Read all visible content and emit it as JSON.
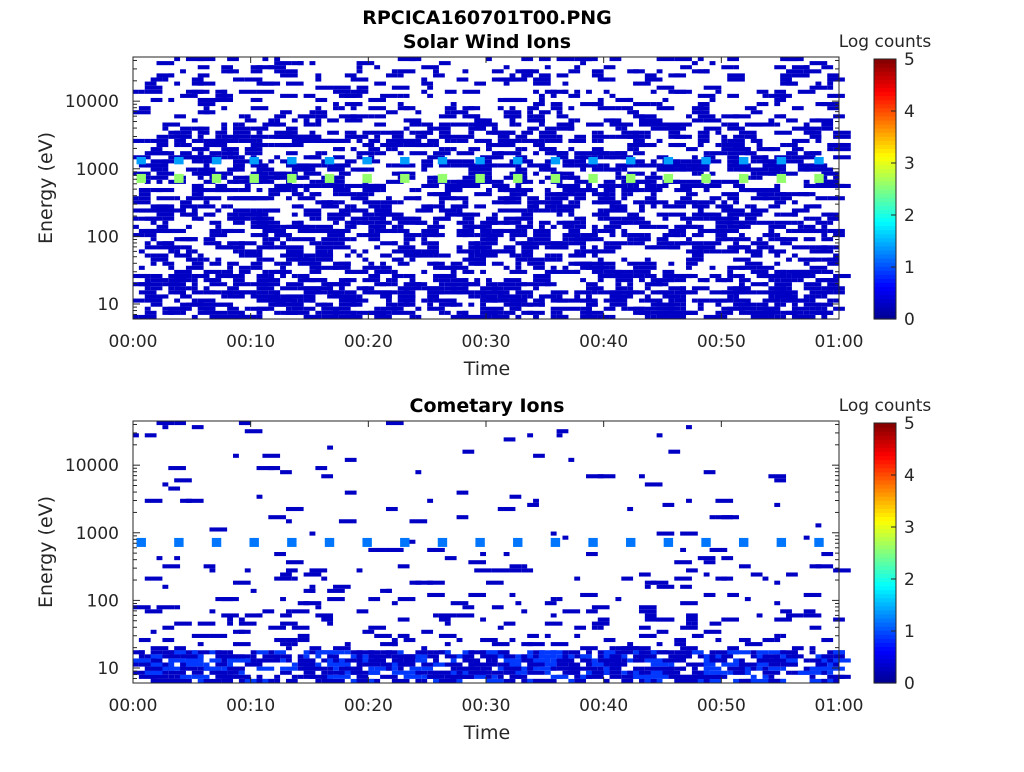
{
  "figure_title": "RPCICA160701T00.PNG",
  "colormap": [
    "#00008f",
    "#0000ff",
    "#0080ff",
    "#00ffff",
    "#80ff80",
    "#ffff00",
    "#ff8000",
    "#ff0000",
    "#800000"
  ],
  "chart_data": [
    {
      "type": "heatmap",
      "title": "Solar Wind Ions",
      "xlabel": "Time",
      "ylabel": "Energy (eV)",
      "x_ticks": [
        "00:00",
        "00:10",
        "00:20",
        "00:30",
        "00:40",
        "00:50",
        "01:00"
      ],
      "xlim_minutes": [
        0,
        60
      ],
      "y_scale": "log",
      "ylim": [
        6,
        45000
      ],
      "y_ticks": [
        {
          "value": 10,
          "label": "10"
        },
        {
          "value": 100,
          "label": "100"
        },
        {
          "value": 1000,
          "label": "1000"
        },
        {
          "value": 10000,
          "label": "10000"
        }
      ],
      "colorbar": {
        "label": "Log counts",
        "range": [
          0,
          5
        ],
        "ticks": [
          "0",
          "1",
          "2",
          "3",
          "4",
          "5"
        ]
      },
      "peak_energy_eV": 700,
      "peak_minutes": [
        0.3,
        3.5,
        6.7,
        9.9,
        13.1,
        16.3,
        19.5,
        22.7,
        25.9,
        29.1,
        32.3,
        35.5,
        38.7,
        41.9,
        45.1,
        48.3,
        51.5,
        54.7,
        57.9
      ],
      "peak_log_counts": 2.6,
      "background_log_counts": 0.3
    },
    {
      "type": "heatmap",
      "title": "Cometary Ions",
      "xlabel": "Time",
      "ylabel": "Energy (eV)",
      "x_ticks": [
        "00:00",
        "00:10",
        "00:20",
        "00:30",
        "00:40",
        "00:50",
        "01:00"
      ],
      "xlim_minutes": [
        0,
        60
      ],
      "y_scale": "log",
      "ylim": [
        6,
        45000
      ],
      "y_ticks": [
        {
          "value": 10,
          "label": "10"
        },
        {
          "value": 100,
          "label": "100"
        },
        {
          "value": 1000,
          "label": "1000"
        },
        {
          "value": 10000,
          "label": "10000"
        }
      ],
      "colorbar": {
        "label": "Log counts",
        "range": [
          0,
          5
        ],
        "ticks": [
          "0",
          "1",
          "2",
          "3",
          "4",
          "5"
        ]
      },
      "peak_energy_eV": 700,
      "peak_minutes": [
        0.3,
        3.5,
        6.7,
        9.9,
        13.1,
        16.3,
        19.5,
        22.7,
        25.9,
        29.1,
        32.3,
        35.5,
        38.7,
        41.9,
        45.1,
        48.3,
        51.5,
        54.7,
        57.9
      ],
      "peak_log_counts": 1.2,
      "low_energy_log_counts": 0.9
    }
  ]
}
